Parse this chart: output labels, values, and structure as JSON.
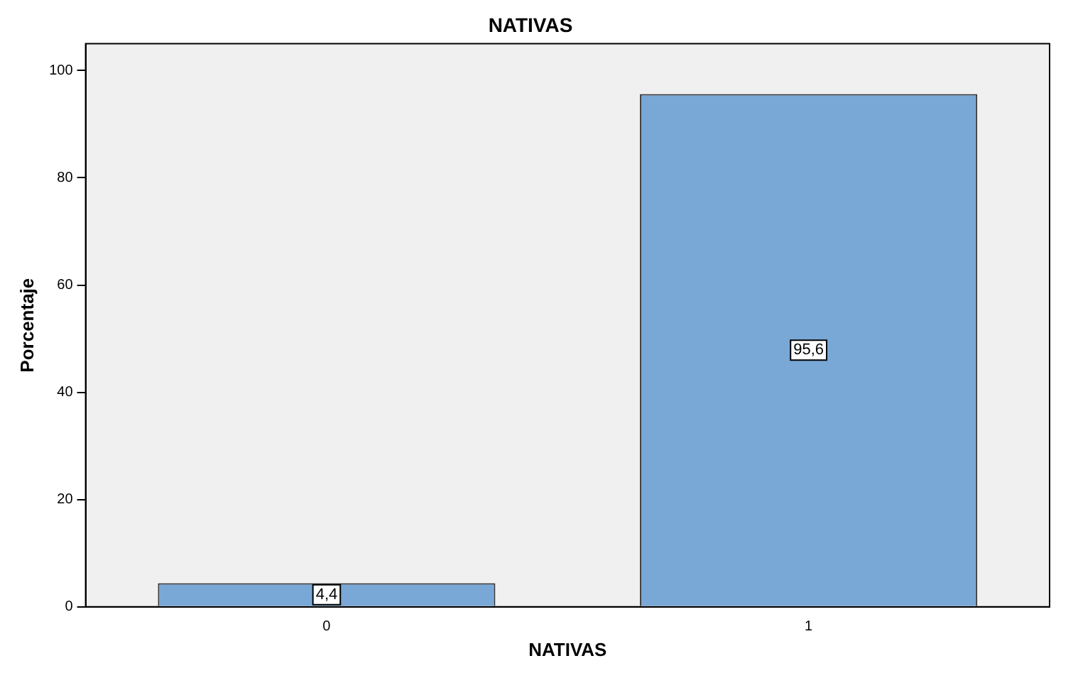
{
  "chart_data": {
    "type": "bar",
    "title": "NATIVAS",
    "xlabel": "NATIVAS",
    "ylabel": "Porcentaje",
    "categories": [
      "0",
      "1"
    ],
    "values": [
      4.4,
      95.6
    ],
    "value_labels": [
      "4,4",
      "95,6"
    ],
    "color": "#79a8d6",
    "ylim": [
      0,
      105
    ],
    "yticks": [
      0,
      20,
      40,
      60,
      80,
      100
    ],
    "grid": false,
    "legend": false
  }
}
